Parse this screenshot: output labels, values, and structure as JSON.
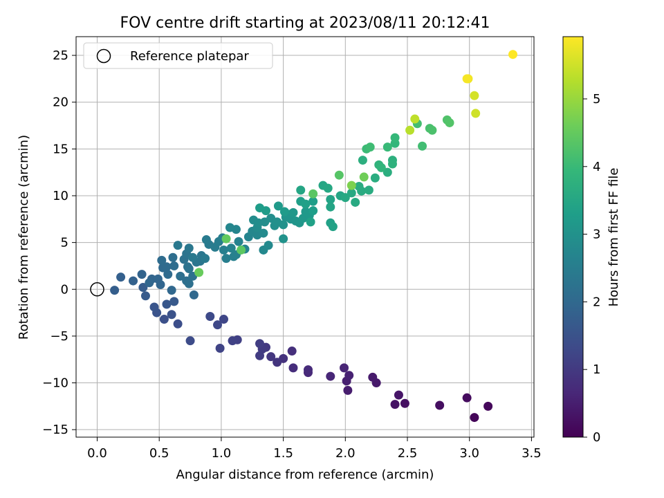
{
  "chart_data": {
    "type": "scatter",
    "title": "FOV centre drift starting at 2023/08/11 20:12:41",
    "xlabel": "Angular distance from reference (arcmin)",
    "ylabel": "Rotation from reference (arcmin)",
    "xlim": [
      -0.17,
      3.52
    ],
    "ylim": [
      -15.8,
      27.0
    ],
    "xticks": [
      0.0,
      0.5,
      1.0,
      1.5,
      2.0,
      2.5,
      3.0,
      3.5
    ],
    "xtick_labels": [
      "0.0",
      "0.5",
      "1.0",
      "1.5",
      "2.0",
      "2.5",
      "3.0",
      "3.5"
    ],
    "yticks": [
      -15,
      -10,
      -5,
      0,
      5,
      10,
      15,
      20,
      25
    ],
    "ytick_labels": [
      "−15",
      "−10",
      "−5",
      "0",
      "5",
      "10",
      "15",
      "20",
      "25"
    ],
    "grid": true,
    "legend": {
      "position": "top-left",
      "entries": [
        "Reference platepar"
      ]
    },
    "reference_point": {
      "x": 0.0,
      "y": 0.0
    },
    "colorbar": {
      "label": "Hours from first FF file",
      "colormap": "viridis",
      "range": [
        0,
        5.92
      ],
      "ticks": [
        0,
        1,
        2,
        3,
        4,
        5
      ],
      "tick_labels": [
        "0",
        "1",
        "2",
        "3",
        "4",
        "5"
      ]
    },
    "series": [
      {
        "points": [
          [
            3.04,
            -13.7,
            0.08
          ],
          [
            3.15,
            -12.5,
            0.12
          ],
          [
            2.98,
            -11.6,
            0.18
          ],
          [
            2.76,
            -12.4,
            0.22
          ],
          [
            2.48,
            -12.2,
            0.26
          ],
          [
            2.4,
            -12.3,
            0.3
          ],
          [
            2.43,
            -11.3,
            0.34
          ],
          [
            2.25,
            -10.0,
            0.4
          ],
          [
            2.22,
            -9.4,
            0.44
          ],
          [
            2.02,
            -10.8,
            0.48
          ],
          [
            2.01,
            -9.8,
            0.52
          ],
          [
            2.03,
            -9.2,
            0.56
          ],
          [
            1.99,
            -8.4,
            0.6
          ],
          [
            1.88,
            -9.3,
            0.64
          ],
          [
            1.7,
            -8.9,
            0.68
          ],
          [
            1.7,
            -8.6,
            0.72
          ],
          [
            1.58,
            -8.4,
            0.76
          ],
          [
            1.57,
            -6.6,
            0.82
          ],
          [
            1.5,
            -7.4,
            0.86
          ],
          [
            1.45,
            -7.8,
            0.9
          ],
          [
            1.4,
            -7.2,
            0.94
          ],
          [
            1.36,
            -6.2,
            0.98
          ],
          [
            1.33,
            -6.4,
            1.02
          ],
          [
            1.31,
            -7.1,
            1.05
          ],
          [
            1.31,
            -5.8,
            1.08
          ],
          [
            1.13,
            -5.4,
            1.12
          ],
          [
            1.09,
            -5.5,
            1.16
          ],
          [
            0.99,
            -6.3,
            1.2
          ],
          [
            1.02,
            -3.2,
            1.24
          ],
          [
            0.97,
            -3.8,
            1.28
          ],
          [
            0.91,
            -2.9,
            1.32
          ],
          [
            0.75,
            -5.5,
            1.36
          ],
          [
            0.65,
            -3.7,
            1.4
          ],
          [
            0.54,
            -3.2,
            1.44
          ],
          [
            0.6,
            -2.7,
            1.48
          ],
          [
            0.48,
            -2.5,
            1.52
          ],
          [
            0.46,
            -1.9,
            1.56
          ],
          [
            0.56,
            -1.6,
            1.6
          ],
          [
            0.62,
            -1.3,
            1.64
          ],
          [
            0.39,
            -0.7,
            1.68
          ],
          [
            0.37,
            0.2,
            1.72
          ],
          [
            0.14,
            -0.1,
            1.76
          ],
          [
            0.19,
            1.3,
            1.8
          ],
          [
            0.29,
            0.9,
            1.84
          ],
          [
            0.36,
            1.6,
            1.88
          ],
          [
            0.44,
            1.1,
            1.9
          ],
          [
            0.51,
            0.5,
            1.92
          ],
          [
            0.49,
            1.1,
            1.94
          ],
          [
            0.42,
            0.7,
            1.96
          ],
          [
            0.6,
            -0.1,
            1.98
          ],
          [
            0.78,
            -0.6,
            2.0
          ],
          [
            0.53,
            2.3,
            2.02
          ],
          [
            0.57,
            1.6,
            2.04
          ],
          [
            0.56,
            2.4,
            2.06
          ],
          [
            0.52,
            3.1,
            2.08
          ],
          [
            0.62,
            2.5,
            2.1
          ],
          [
            0.61,
            3.4,
            2.12
          ],
          [
            0.67,
            1.4,
            2.14
          ],
          [
            0.72,
            0.9,
            2.16
          ],
          [
            0.74,
            0.6,
            2.18
          ],
          [
            0.77,
            1.4,
            2.2
          ],
          [
            0.7,
            3.2,
            2.22
          ],
          [
            0.73,
            2.4,
            2.24
          ],
          [
            0.74,
            2.2,
            2.26
          ],
          [
            0.72,
            3.8,
            2.28
          ],
          [
            0.8,
            2.9,
            2.3
          ],
          [
            0.84,
            3.6,
            2.32
          ],
          [
            0.83,
            3.0,
            2.34
          ],
          [
            0.74,
            4.4,
            2.36
          ],
          [
            0.65,
            4.7,
            2.38
          ],
          [
            0.77,
            3.4,
            2.4
          ],
          [
            0.87,
            3.3,
            2.42
          ],
          [
            0.9,
            4.8,
            2.44
          ],
          [
            0.88,
            5.3,
            2.46
          ],
          [
            0.95,
            4.5,
            2.48
          ],
          [
            0.98,
            5.1,
            2.5
          ],
          [
            1.01,
            5.5,
            2.52
          ],
          [
            1.04,
            3.3,
            2.54
          ],
          [
            1.02,
            4.2,
            2.56
          ],
          [
            1.1,
            3.5,
            2.58
          ],
          [
            1.12,
            3.7,
            2.6
          ],
          [
            1.08,
            4.4,
            2.62
          ],
          [
            1.14,
            5.1,
            2.64
          ],
          [
            1.19,
            4.3,
            2.66
          ],
          [
            1.22,
            5.6,
            2.68
          ],
          [
            1.12,
            6.4,
            2.7
          ],
          [
            1.07,
            6.6,
            2.72
          ],
          [
            1.25,
            6.2,
            2.74
          ],
          [
            1.29,
            5.8,
            2.76
          ],
          [
            1.34,
            4.2,
            2.78
          ],
          [
            1.38,
            4.7,
            2.8
          ],
          [
            1.34,
            6.0,
            2.82
          ],
          [
            1.29,
            6.6,
            2.84
          ],
          [
            1.26,
            7.4,
            2.86
          ],
          [
            1.3,
            7.1,
            2.88
          ],
          [
            1.35,
            7.2,
            2.9
          ],
          [
            1.4,
            7.6,
            2.92
          ],
          [
            1.43,
            6.8,
            2.94
          ],
          [
            1.45,
            7.2,
            2.96
          ],
          [
            1.5,
            6.9,
            2.98
          ],
          [
            1.5,
            5.4,
            3.0
          ],
          [
            1.52,
            7.7,
            3.02
          ],
          [
            1.56,
            7.5,
            3.04
          ],
          [
            1.55,
            8.0,
            3.06
          ],
          [
            1.6,
            7.3,
            3.08
          ],
          [
            1.63,
            7.1,
            3.1
          ],
          [
            1.58,
            8.2,
            3.12
          ],
          [
            1.66,
            7.6,
            3.14
          ],
          [
            1.68,
            8.3,
            3.16
          ],
          [
            1.71,
            7.9,
            3.18
          ],
          [
            1.46,
            8.9,
            3.2
          ],
          [
            1.51,
            8.3,
            3.22
          ],
          [
            1.36,
            8.4,
            3.24
          ],
          [
            1.31,
            8.7,
            3.26
          ],
          [
            1.74,
            9.4,
            3.28
          ],
          [
            1.74,
            8.4,
            3.3
          ],
          [
            1.64,
            9.4,
            3.32
          ],
          [
            1.68,
            9.1,
            3.34
          ],
          [
            1.72,
            7.2,
            3.36
          ],
          [
            1.88,
            7.1,
            3.38
          ],
          [
            1.9,
            6.7,
            3.4
          ],
          [
            1.88,
            9.6,
            3.42
          ],
          [
            1.88,
            8.8,
            3.44
          ],
          [
            1.96,
            10.0,
            3.46
          ],
          [
            1.64,
            10.6,
            3.48
          ],
          [
            1.82,
            11.1,
            3.5
          ],
          [
            1.86,
            10.8,
            3.52
          ],
          [
            2.0,
            9.8,
            3.54
          ],
          [
            2.05,
            10.3,
            3.56
          ],
          [
            2.08,
            9.3,
            3.58
          ],
          [
            2.13,
            10.5,
            3.6
          ],
          [
            2.19,
            10.6,
            3.62
          ],
          [
            2.11,
            11.0,
            3.64
          ],
          [
            2.24,
            11.9,
            3.66
          ],
          [
            2.34,
            12.5,
            3.68
          ],
          [
            2.14,
            13.8,
            3.7
          ],
          [
            2.38,
            13.8,
            3.74
          ],
          [
            2.38,
            13.4,
            3.78
          ],
          [
            2.27,
            13.3,
            3.82
          ],
          [
            2.29,
            13.0,
            3.86
          ],
          [
            2.4,
            15.6,
            3.9
          ],
          [
            2.4,
            16.2,
            3.94
          ],
          [
            2.34,
            15.2,
            3.98
          ],
          [
            2.17,
            15.0,
            4.02
          ],
          [
            2.2,
            15.2,
            4.06
          ],
          [
            2.62,
            15.3,
            4.1
          ],
          [
            2.58,
            17.7,
            4.14
          ],
          [
            2.68,
            17.2,
            4.18
          ],
          [
            2.7,
            17.0,
            4.22
          ],
          [
            2.82,
            18.1,
            4.26
          ],
          [
            2.84,
            17.8,
            4.3
          ],
          [
            1.95,
            12.2,
            4.34
          ],
          [
            1.74,
            10.2,
            4.38
          ],
          [
            1.16,
            4.2,
            4.42
          ],
          [
            1.04,
            5.4,
            4.48
          ],
          [
            0.82,
            1.8,
            4.55
          ],
          [
            2.15,
            12.0,
            4.62
          ],
          [
            2.05,
            11.1,
            4.75
          ],
          [
            2.52,
            17.0,
            5.3
          ],
          [
            2.56,
            18.2,
            5.35
          ],
          [
            3.05,
            18.8,
            5.5
          ],
          [
            3.04,
            20.7,
            5.55
          ],
          [
            2.99,
            22.5,
            5.8
          ],
          [
            2.98,
            22.5,
            5.85
          ],
          [
            3.35,
            25.1,
            5.92
          ]
        ]
      }
    ]
  }
}
